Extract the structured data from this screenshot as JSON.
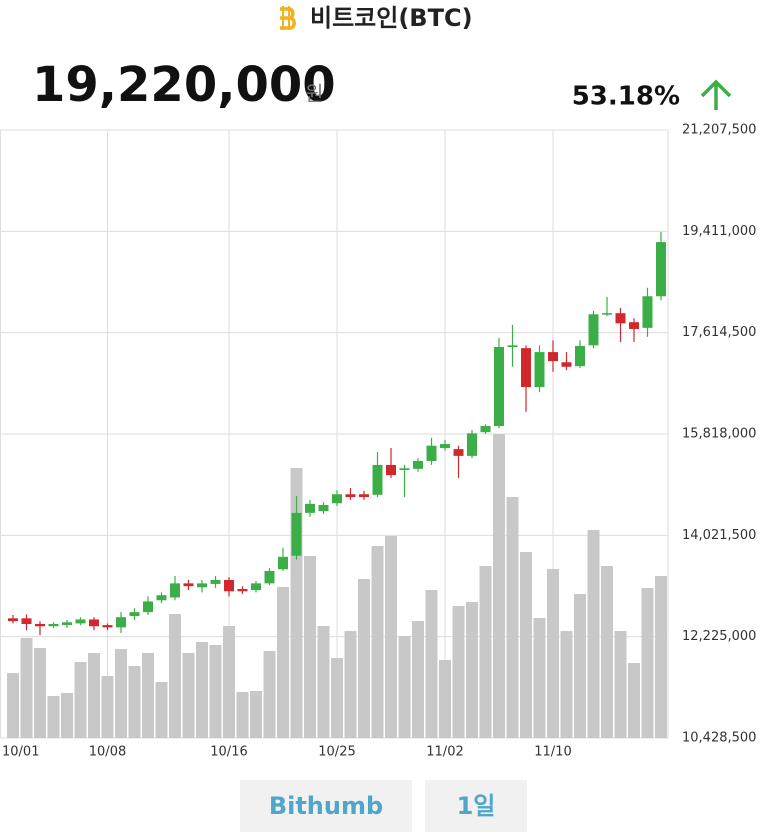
{
  "header": {
    "title": "비트코인(BTC)",
    "price": "19,220,000",
    "currency": "원",
    "change": "53.18%"
  },
  "chart_data": {
    "type": "candlestick",
    "categories": [
      "10/01",
      null,
      null,
      null,
      null,
      null,
      null,
      "10/08",
      null,
      null,
      null,
      null,
      null,
      null,
      null,
      null,
      "10/16",
      null,
      null,
      null,
      null,
      null,
      null,
      null,
      "10/25",
      null,
      null,
      null,
      null,
      null,
      null,
      null,
      "11/02",
      null,
      null,
      null,
      null,
      null,
      null,
      null,
      "11/10",
      null,
      null,
      null,
      null,
      null,
      null,
      null,
      null
    ],
    "open": [
      12550000,
      12550000,
      12450000,
      12410000,
      12430000,
      12460000,
      12530000,
      12430000,
      12390000,
      12590000,
      12660000,
      12870000,
      12920000,
      13170000,
      13100000,
      13160000,
      13230000,
      13070000,
      13050000,
      13170000,
      13420000,
      13660000,
      14420000,
      14450000,
      14590000,
      14750000,
      14750000,
      14740000,
      15270000,
      15180000,
      15200000,
      15340000,
      15570000,
      15550000,
      15430000,
      15850000,
      15960000,
      17360000,
      17340000,
      16650000,
      17270000,
      17090000,
      17020000,
      17390000,
      17940000,
      17960000,
      17800000,
      17700000,
      18260000
    ],
    "high": [
      12610000,
      12620000,
      12500000,
      12480000,
      12520000,
      12570000,
      12570000,
      12460000,
      12660000,
      12730000,
      12940000,
      13010000,
      13300000,
      13230000,
      13230000,
      13300000,
      13280000,
      13120000,
      13210000,
      13440000,
      13800000,
      14720000,
      14650000,
      14610000,
      14820000,
      14860000,
      14810000,
      15500000,
      15570000,
      15270000,
      15390000,
      15750000,
      15710000,
      15610000,
      15890000,
      15990000,
      17520000,
      17750000,
      17390000,
      17390000,
      17480000,
      17270000,
      17480000,
      18000000,
      18250000,
      18050000,
      17870000,
      18410000,
      19400000
    ],
    "low": [
      12460000,
      12340000,
      12250000,
      12380000,
      12380000,
      12430000,
      12340000,
      12340000,
      12290000,
      12520000,
      12610000,
      12820000,
      12870000,
      13050000,
      13010000,
      13090000,
      12940000,
      12980000,
      13010000,
      13140000,
      13390000,
      13590000,
      14350000,
      14400000,
      14540000,
      14650000,
      14650000,
      14700000,
      15040000,
      14700000,
      15150000,
      15270000,
      15520000,
      15040000,
      15390000,
      15820000,
      15920000,
      17010000,
      16210000,
      16560000,
      16920000,
      16950000,
      16990000,
      17340000,
      17910000,
      17450000,
      17450000,
      17540000,
      18190000
    ],
    "close": [
      12500000,
      12450000,
      12410000,
      12450000,
      12480000,
      12530000,
      12410000,
      12390000,
      12570000,
      12660000,
      12850000,
      12960000,
      13170000,
      13120000,
      13170000,
      13230000,
      13030000,
      13030000,
      13170000,
      13390000,
      13640000,
      14420000,
      14580000,
      14560000,
      14750000,
      14700000,
      14700000,
      15270000,
      15090000,
      15210000,
      15340000,
      15610000,
      15640000,
      15430000,
      15830000,
      15960000,
      17360000,
      17390000,
      16650000,
      17270000,
      17110000,
      17010000,
      17380000,
      17940000,
      17960000,
      17780000,
      17680000,
      18260000,
      19220000
    ],
    "volume": [
      65,
      100,
      90,
      42,
      45,
      76,
      85,
      62,
      89,
      72,
      85,
      56,
      124,
      85,
      96,
      93,
      112,
      46,
      47,
      87,
      151,
      270,
      182,
      112,
      80,
      107,
      159,
      192,
      202,
      102,
      117,
      148,
      78,
      132,
      136,
      172,
      304,
      241,
      186,
      120,
      169,
      107,
      144,
      208,
      172,
      107,
      75,
      150,
      162
    ],
    "up_color": "#3cae48",
    "down_color": "#d0282c",
    "volume_color": "#c8c8c8",
    "ylim": [
      10428500,
      21207500
    ],
    "yticks": [
      {
        "value": 10428500,
        "label": "10,428,500"
      },
      {
        "value": 12225000,
        "label": "12,225,000"
      },
      {
        "value": 14021500,
        "label": "14,021,500"
      },
      {
        "value": 15818000,
        "label": "15,818,000"
      },
      {
        "value": 17614500,
        "label": "17,614,500"
      },
      {
        "value": 19411000,
        "label": "19,411,000"
      },
      {
        "value": 21207500,
        "label": "21,207,500"
      }
    ],
    "grid": true
  },
  "buttons": [
    "Bithumb",
    "1일"
  ]
}
